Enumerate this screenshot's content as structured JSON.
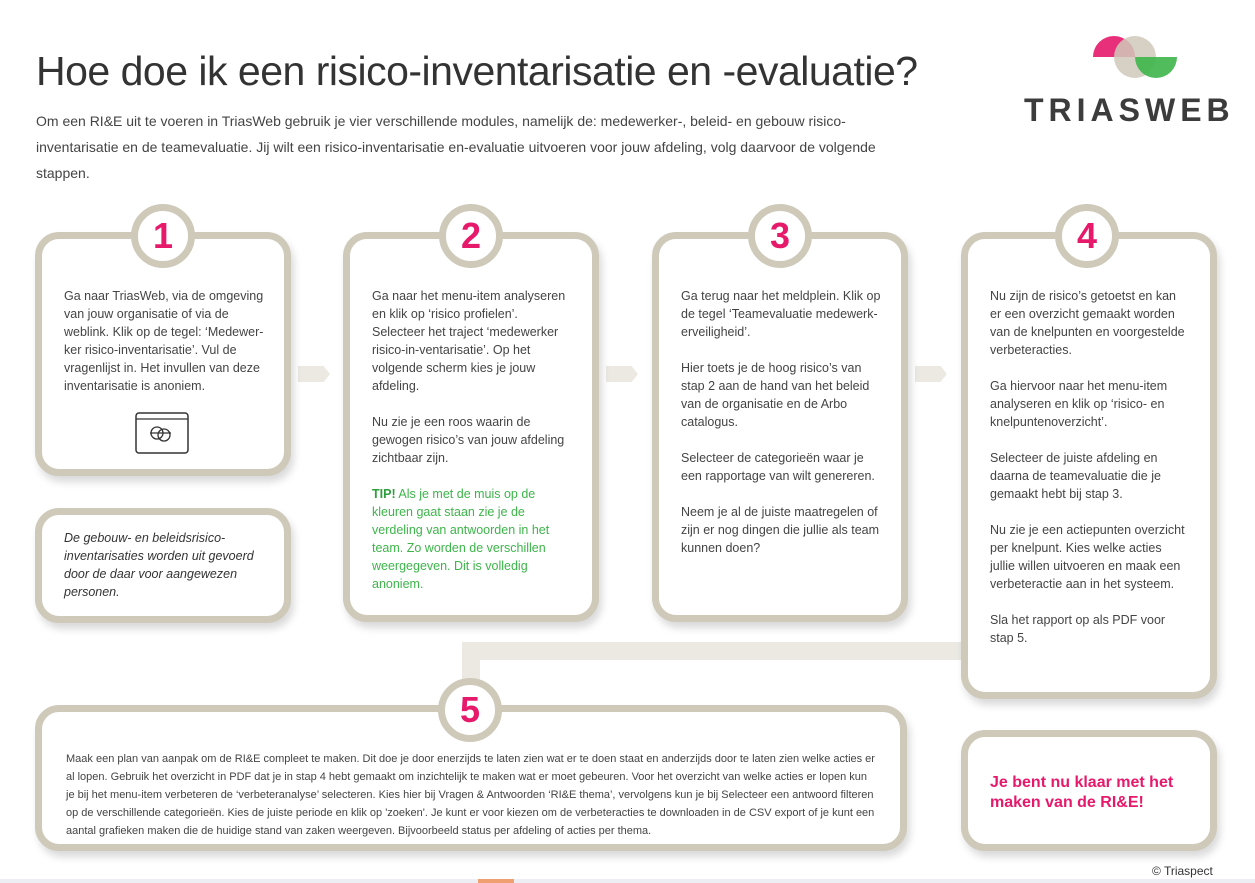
{
  "header": {
    "title": "Hoe doe ik een risico-inventarisatie en -evaluatie?",
    "intro": "Om een RI&E uit te voeren in TriasWeb gebruik je vier verschillende modules, namelijk de: medewerker-, beleid- en gebouw risico-inventarisatie en de teamevaluatie. Jij wilt een risico-inventarisatie en-evaluatie uitvoeren voor jouw afdeling, volg daarvoor de volgende stappen."
  },
  "logo": {
    "text": "TRIASWEB",
    "colors": {
      "pink": "#e6196b",
      "beige": "#cfc9ba",
      "green": "#3db54a"
    }
  },
  "steps": [
    {
      "number": "1",
      "paragraphs": [
        "Ga naar TriasWeb, via de omgeving van jouw organisatie of via de weblink. Klik op de tegel: ‘Medewer-ker risico-inventarisatie’. Vul de vragenlijst in. Het invullen van deze inventarisatie is anoniem."
      ],
      "icon": "browser-window-icon"
    },
    {
      "number": "2",
      "paragraphs": [
        "Ga naar het menu-item analyseren en klik op ‘risico profielen’. Selecteer het traject ‘medewerker risico-in-ventarisatie’. Op het volgende scherm kies je jouw afdeling.",
        "Nu zie je een roos waarin de gewogen risico’s van jouw afdeling zichtbaar zijn."
      ],
      "tip_label": "TIP!",
      "tip": " Als je met de muis op de kleuren gaat staan zie je de verdeling van antwoorden in het team. Zo worden de verschillen weergegeven.  Dit is volledig anoniem."
    },
    {
      "number": "3",
      "paragraphs": [
        "Ga terug naar het meldplein. Klik op de tegel ‘Teamevaluatie medewerk-erveiligheid’.",
        "Hier toets je de hoog risico’s van stap 2 aan de hand van het beleid van de organisatie en de Arbo catalogus.",
        "Selecteer de categorieën waar je een rapportage van wilt genereren.",
        "Neem je al de juiste maatregelen of zijn er nog dingen die jullie als team kunnen doen?"
      ]
    },
    {
      "number": "4",
      "paragraphs": [
        "Nu zijn de risico’s getoetst en kan er een overzicht gemaakt worden van de knelpunten en voorgestelde verbeteracties.",
        "Ga hiervoor naar het menu-item analyseren en klik op ‘risico- en knelpuntenoverzicht’.",
        "Selecteer de juiste afdeling en daarna de teamevaluatie die je gemaakt hebt bij stap 3.",
        "Nu zie je een actiepunten overzicht per knelpunt. Kies welke acties jullie willen uitvoeren en maak een verbeteractie aan in het systeem.",
        "Sla het rapport op als PDF voor stap 5."
      ]
    },
    {
      "number": "5",
      "paragraphs": [
        "Maak een plan van aanpak om de RI&E compleet te maken. Dit doe je door enerzijds te laten zien wat er te doen staat en anderzijds door te laten zien welke acties er al lopen. Gebruik het overzicht in PDF dat je in stap 4 hebt gemaakt om inzichtelijk te maken wat er moet gebeuren. Voor het overzicht van welke acties er lopen kun je bij het menu-item verbeteren de ‘verbeteranalyse’ selecteren. Kies hier bij Vragen & Antwoorden ‘RI&E thema’, vervolgens kun je bij Selecteer een antwoord filteren op de verschillende categorieën. Kies de juiste periode en klik op 'zoeken'. Je kunt er voor kiezen om de verbeteracties te downloaden in de CSV export of je kunt een aantal grafieken maken die de huidige stand van zaken weergeven. Bijvoorbeeld status per afdeling of acties per thema."
      ]
    }
  ],
  "note": "De gebouw- en beleidsrisico-inventarisaties worden uit gevoerd door de daar voor aangewezen personen.",
  "final": "Je bent nu klaar met het maken van de RI&E!",
  "copyright": "© Triaspect"
}
